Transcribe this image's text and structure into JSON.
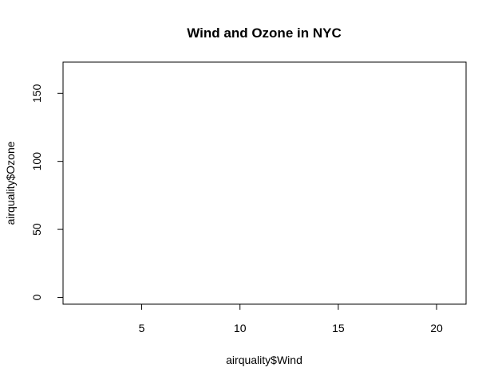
{
  "chart_data": {
    "type": "scatter",
    "title": "Wind and Ozone in NYC",
    "xlabel": "airquality$Wind",
    "ylabel": "airquality$Ozone",
    "xlim": [
      1.0,
      21.5
    ],
    "ylim": [
      -5,
      173
    ],
    "x_ticks": [
      5,
      10,
      15,
      20
    ],
    "y_ticks": [
      0,
      50,
      100,
      150
    ],
    "x_tick_labels": [
      "5",
      "10",
      "15",
      "20"
    ],
    "y_tick_labels": [
      "0",
      "50",
      "100",
      "150"
    ],
    "points": [],
    "grid": false,
    "legend": "none",
    "colors": {
      "axis": "#000000",
      "background": "#ffffff"
    }
  }
}
